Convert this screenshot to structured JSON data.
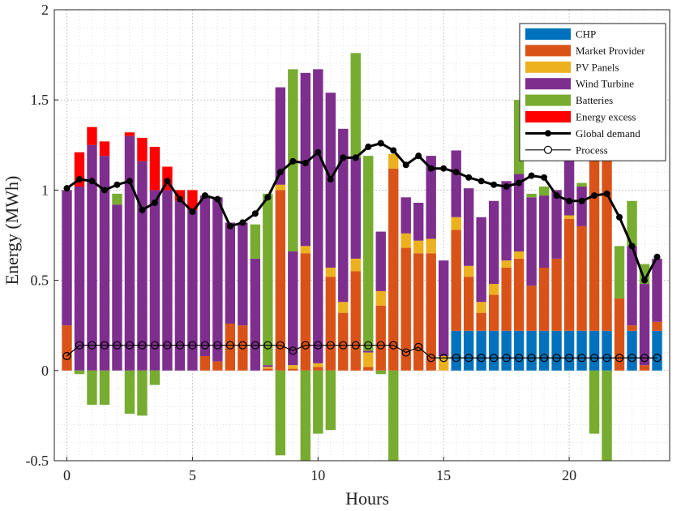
{
  "chart_data": {
    "type": "bar",
    "subtype": "stacked-bar-with-lines",
    "xlabel": "Hours",
    "ylabel": "Energy (MWh)",
    "xlim": [
      -0.5,
      24
    ],
    "ylim": [
      -0.5,
      2
    ],
    "xticks": [
      0,
      5,
      10,
      15,
      20
    ],
    "yticks": [
      -0.5,
      0,
      0.5,
      1,
      1.5,
      2
    ],
    "ytick_labels": [
      "-0.5",
      "0",
      "0.5",
      "1",
      "1.5",
      "2"
    ],
    "grid": "on (dotted, with minor grid)",
    "legend_position": "top-right",
    "colors": {
      "CHP": "#0072BD",
      "Market Provider": "#D95319",
      "PV Panels": "#EDB120",
      "Wind Turbine": "#7E2F8E",
      "Batteries": "#77AC30",
      "Energy excess": "#FF0000",
      "Global demand": "#000000",
      "Process": "#000000"
    },
    "legend": [
      "CHP",
      "Market Provider",
      "PV Panels",
      "Wind Turbine",
      "Batteries",
      "Energy excess",
      "Global demand",
      "Process"
    ],
    "bar_width_hours": 0.4,
    "x": [
      0,
      0.5,
      1,
      1.5,
      2,
      2.5,
      3,
      3.5,
      4,
      4.5,
      5,
      5.5,
      6,
      6.5,
      7,
      7.5,
      8,
      8.5,
      9,
      9.5,
      10,
      10.5,
      11,
      11.5,
      12,
      12.5,
      13,
      13.5,
      14,
      14.5,
      15,
      15.5,
      16,
      16.5,
      17,
      17.5,
      18,
      18.5,
      19,
      19.5,
      20,
      20.5,
      21,
      21.5,
      22,
      22.5,
      23,
      23.5
    ],
    "series": [
      {
        "name": "CHP",
        "values": [
          0,
          0,
          0,
          0,
          0,
          0,
          0,
          0,
          0,
          0,
          0,
          0,
          0,
          0,
          0,
          0,
          0,
          0,
          0,
          0,
          0,
          0,
          0,
          0,
          0,
          0,
          0,
          0,
          0,
          0,
          0,
          0.22,
          0.22,
          0.22,
          0.22,
          0.22,
          0.22,
          0.22,
          0.22,
          0.22,
          0.22,
          0.22,
          0.22,
          0.22,
          0,
          0.22,
          0,
          0.22
        ]
      },
      {
        "name": "Market Provider",
        "values": [
          0.25,
          0,
          0,
          0,
          0,
          0,
          0,
          0,
          0,
          0,
          0,
          0.08,
          0.05,
          0.26,
          0.25,
          0,
          0.01,
          1.0,
          0.01,
          0.65,
          0.02,
          0.52,
          0.32,
          0.55,
          0.02,
          0.36,
          1.12,
          0.68,
          0.65,
          0.65,
          0,
          0.56,
          0.3,
          0.1,
          0.2,
          0.35,
          0.4,
          0.25,
          0.35,
          0.4,
          0.62,
          0.58,
          0.95,
          1.0,
          0.4,
          0.03,
          0.03,
          0.05
        ]
      },
      {
        "name": "PV Panels",
        "values": [
          0,
          0,
          0,
          0,
          0,
          0,
          0,
          0,
          0,
          0,
          0,
          0,
          0,
          0,
          0,
          0,
          0.01,
          0.03,
          0.02,
          0.04,
          0.02,
          0.05,
          0.06,
          0.07,
          0.08,
          0.08,
          0.08,
          0.08,
          0.07,
          0.08,
          0.08,
          0.07,
          0.06,
          0.06,
          0.06,
          0.04,
          0.04,
          0,
          0,
          0,
          0.02,
          0,
          0,
          0,
          0,
          0,
          0,
          0
        ]
      },
      {
        "name": "Wind Turbine",
        "values": [
          0.75,
          1.02,
          1.25,
          1.19,
          0.92,
          1.3,
          1.16,
          1.0,
          1.0,
          0.94,
          0.89,
          0.89,
          0.91,
          0.56,
          0.57,
          0.62,
          0.01,
          0.54,
          0.63,
          0.96,
          1.63,
          0.97,
          0.96,
          0.56,
          0.01,
          0.33,
          0,
          0.2,
          0.21,
          0.46,
          0.53,
          0.37,
          0.43,
          0.47,
          0.46,
          0.44,
          0.43,
          0.49,
          0.4,
          0.38,
          0.35,
          0.22,
          0,
          0,
          0,
          0.44,
          0.45,
          0.35
        ]
      },
      {
        "name": "Batteries",
        "values": [
          0,
          -0.02,
          -0.19,
          -0.19,
          0.06,
          -0.24,
          -0.25,
          -0.08,
          0,
          0,
          0,
          0,
          0,
          0,
          0,
          0.19,
          0.95,
          -0.47,
          1.01,
          -0.5,
          -0.35,
          -0.33,
          0,
          0.58,
          1.08,
          -0.02,
          -0.5,
          0,
          0,
          0,
          0,
          0,
          0,
          0,
          0,
          0,
          0.41,
          0.02,
          0.05,
          0,
          0,
          0.02,
          -0.35,
          -0.5,
          0.29,
          0.25,
          0.11,
          0
        ]
      },
      {
        "name": "Energy excess",
        "values": [
          0,
          0.19,
          0.1,
          0.08,
          0,
          0.02,
          0.13,
          0.24,
          0.13,
          0.06,
          0.11,
          0,
          0,
          0,
          0,
          0,
          0,
          0,
          0,
          0,
          0,
          0,
          0,
          0,
          0,
          0,
          0,
          0,
          0,
          0,
          0,
          0,
          0,
          0,
          0,
          0,
          0,
          0,
          0,
          0,
          0,
          0,
          0.03,
          0,
          0,
          0,
          0,
          0
        ]
      },
      {
        "name": "Global demand",
        "line": true,
        "values": [
          1.01,
          1.06,
          1.05,
          1.0,
          1.03,
          1.05,
          0.89,
          0.93,
          1.05,
          0.95,
          0.88,
          0.97,
          0.95,
          0.8,
          0.82,
          0.87,
          0.96,
          1.1,
          1.16,
          1.15,
          1.21,
          1.06,
          1.18,
          1.18,
          1.24,
          1.26,
          1.22,
          1.14,
          1.19,
          1.12,
          1.12,
          1.1,
          1.07,
          1.05,
          1.03,
          1.02,
          1.04,
          1.08,
          1.07,
          0.97,
          0.94,
          0.94,
          0.97,
          0.98,
          0.85,
          0.69,
          0.5,
          0.63
        ]
      },
      {
        "name": "Process",
        "line": true,
        "values": [
          0.08,
          0.14,
          0.14,
          0.14,
          0.14,
          0.14,
          0.14,
          0.14,
          0.14,
          0.14,
          0.14,
          0.14,
          0.14,
          0.14,
          0.14,
          0.14,
          0.14,
          0.14,
          0.11,
          0.14,
          0.14,
          0.14,
          0.14,
          0.14,
          0.14,
          0.14,
          0.14,
          0.1,
          0.13,
          0.07,
          0.07,
          0.07,
          0.07,
          0.07,
          0.07,
          0.07,
          0.07,
          0.07,
          0.07,
          0.07,
          0.07,
          0.07,
          0.07,
          0.07,
          0.07,
          0.07,
          0.07,
          0.07
        ]
      }
    ]
  }
}
